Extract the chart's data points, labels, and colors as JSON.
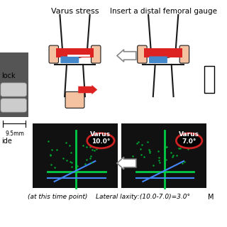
{
  "title_left": "Varus stress",
  "title_right": "Insert a distal femoral gauge",
  "bottom_text_left": "(at this time point)",
  "bottom_text_right": "Lateral laxity:(10.0-7.0)=3.0°",
  "bottom_text_far": "M",
  "left_label": "lock",
  "left_measure": "9.5mm",
  "left_label2": "ide",
  "varus_left": "Varus\n10.0°",
  "varus_right": "Varus\n7.0°",
  "bg_color": "#ffffff",
  "knee_outline_color": "#1a1a1a",
  "knee_fill_color": "#f4c2a1",
  "red_fill": "#dd2222",
  "blue_fill": "#4488cc",
  "dark_bg": "#1a1a1a",
  "green_line": "#00cc44",
  "blue_line": "#4488ff",
  "varus_circle_color": "#cc2222",
  "arrow_left_color": "#cc2222",
  "arrow_outline_color": "#888888"
}
